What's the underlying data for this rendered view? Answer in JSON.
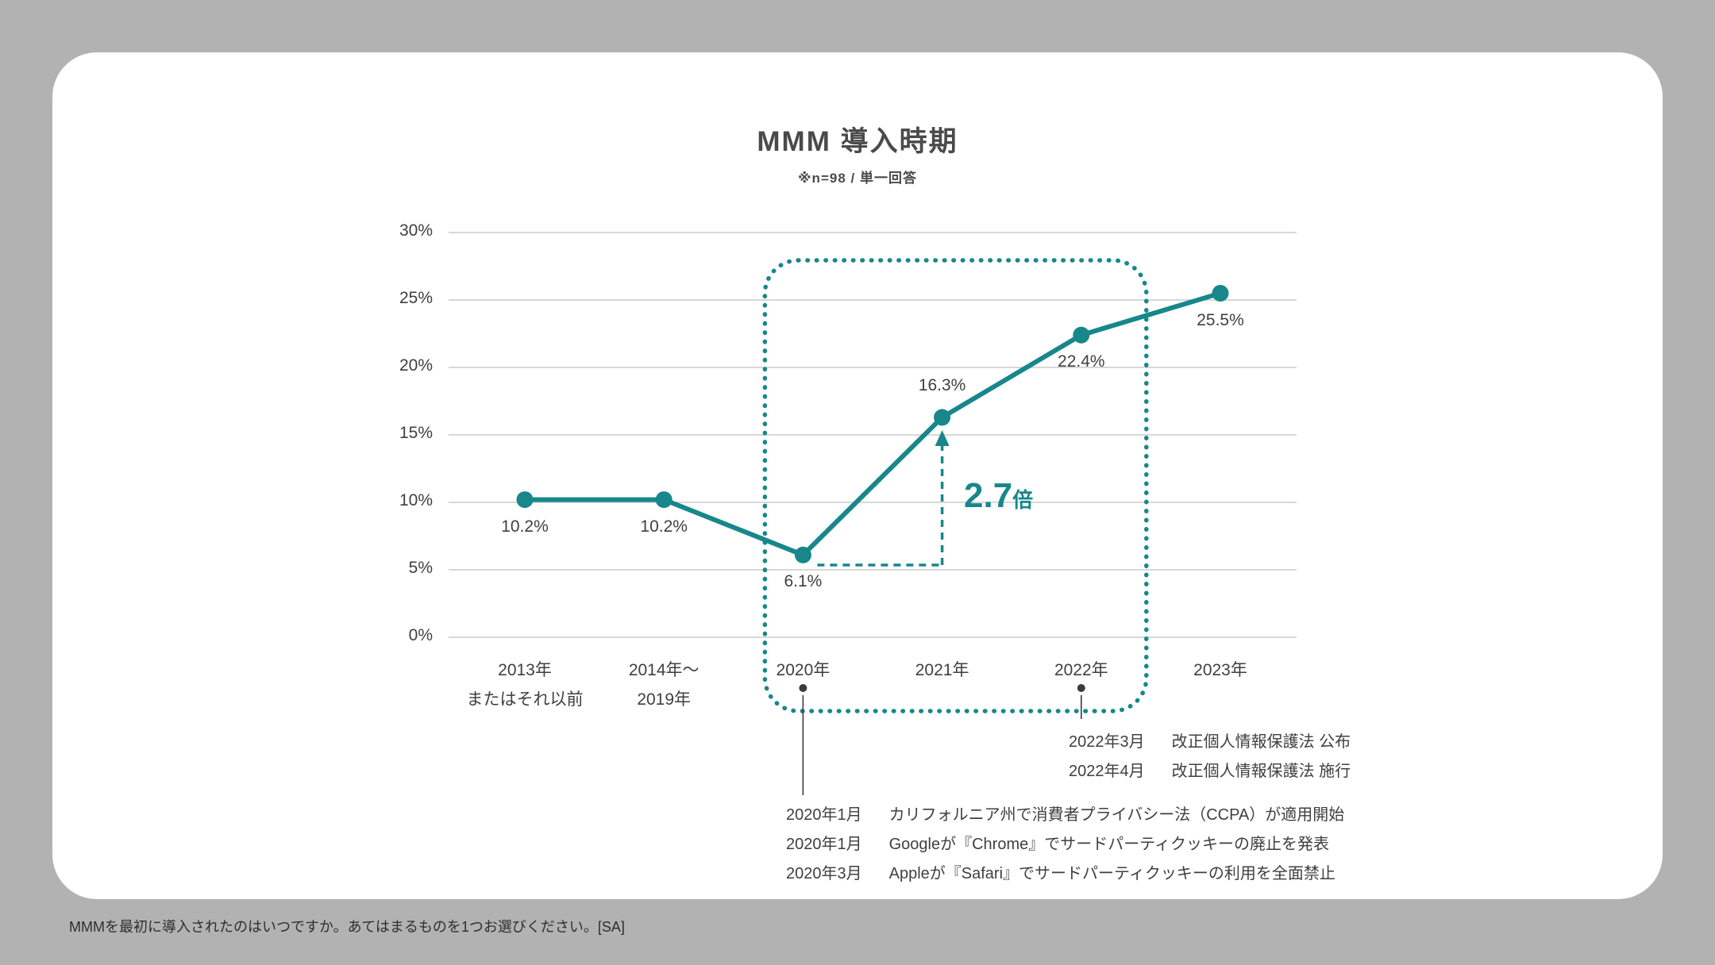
{
  "page": {
    "footer_note": "MMMを最初に導入されたのはいつですか。あてはまるものを1つお選びください。[SA]"
  },
  "colors": {
    "background": "#B2B2B2",
    "card_background": "#FFFFFF",
    "accent": "#17878B",
    "text": "#3F3F3F",
    "title": "#4A4A4A",
    "grid": "#CCCCCC",
    "connector": "#3B3B3B"
  },
  "chart_data": {
    "type": "line",
    "title": "MMM 導入時期",
    "subtitle": "※n=98 / 単一回答",
    "categories": [
      {
        "lines": [
          "2013年",
          "またはそれ以前"
        ]
      },
      {
        "lines": [
          "2014年〜",
          "2019年"
        ]
      },
      {
        "lines": [
          "2020年"
        ]
      },
      {
        "lines": [
          "2021年"
        ]
      },
      {
        "lines": [
          "2022年"
        ]
      },
      {
        "lines": [
          "2023年"
        ]
      }
    ],
    "values": [
      10.2,
      10.2,
      6.1,
      16.3,
      22.4,
      25.5
    ],
    "value_labels": [
      "10.2%",
      "10.2%",
      "6.1%",
      "16.3%",
      "22.4%",
      "25.5%"
    ],
    "value_label_side": [
      "below",
      "below",
      "below",
      "above",
      "below",
      "below"
    ],
    "ylim": [
      0,
      30
    ],
    "yticks": [
      0,
      5,
      10,
      15,
      20,
      25,
      30
    ],
    "ytick_labels": [
      "0%",
      "5%",
      "10%",
      "15%",
      "20%",
      "25%",
      "30%"
    ],
    "grid": true,
    "legend": false,
    "highlight_box": {
      "from_index": 2,
      "to_index": 4
    },
    "annotation": {
      "value": "2.7",
      "unit": "倍",
      "from_index": 2,
      "to_index": 3
    },
    "callouts": [
      {
        "anchor_index": 4,
        "rows": [
          {
            "date": "2022年3月",
            "text": "改正個人情報保護法 公布"
          },
          {
            "date": "2022年4月",
            "text": "改正個人情報保護法 施行"
          }
        ]
      },
      {
        "anchor_index": 2,
        "rows": [
          {
            "date": "2020年1月",
            "text": "カリフォルニア州で消費者プライバシー法（CCPA）が適用開始"
          },
          {
            "date": "2020年1月",
            "text": "Googleが『Chrome』でサードパーティクッキーの廃止を発表"
          },
          {
            "date": "2020年3月",
            "text": "Appleが『Safari』でサードパーティクッキーの利用を全面禁止"
          }
        ]
      }
    ]
  }
}
